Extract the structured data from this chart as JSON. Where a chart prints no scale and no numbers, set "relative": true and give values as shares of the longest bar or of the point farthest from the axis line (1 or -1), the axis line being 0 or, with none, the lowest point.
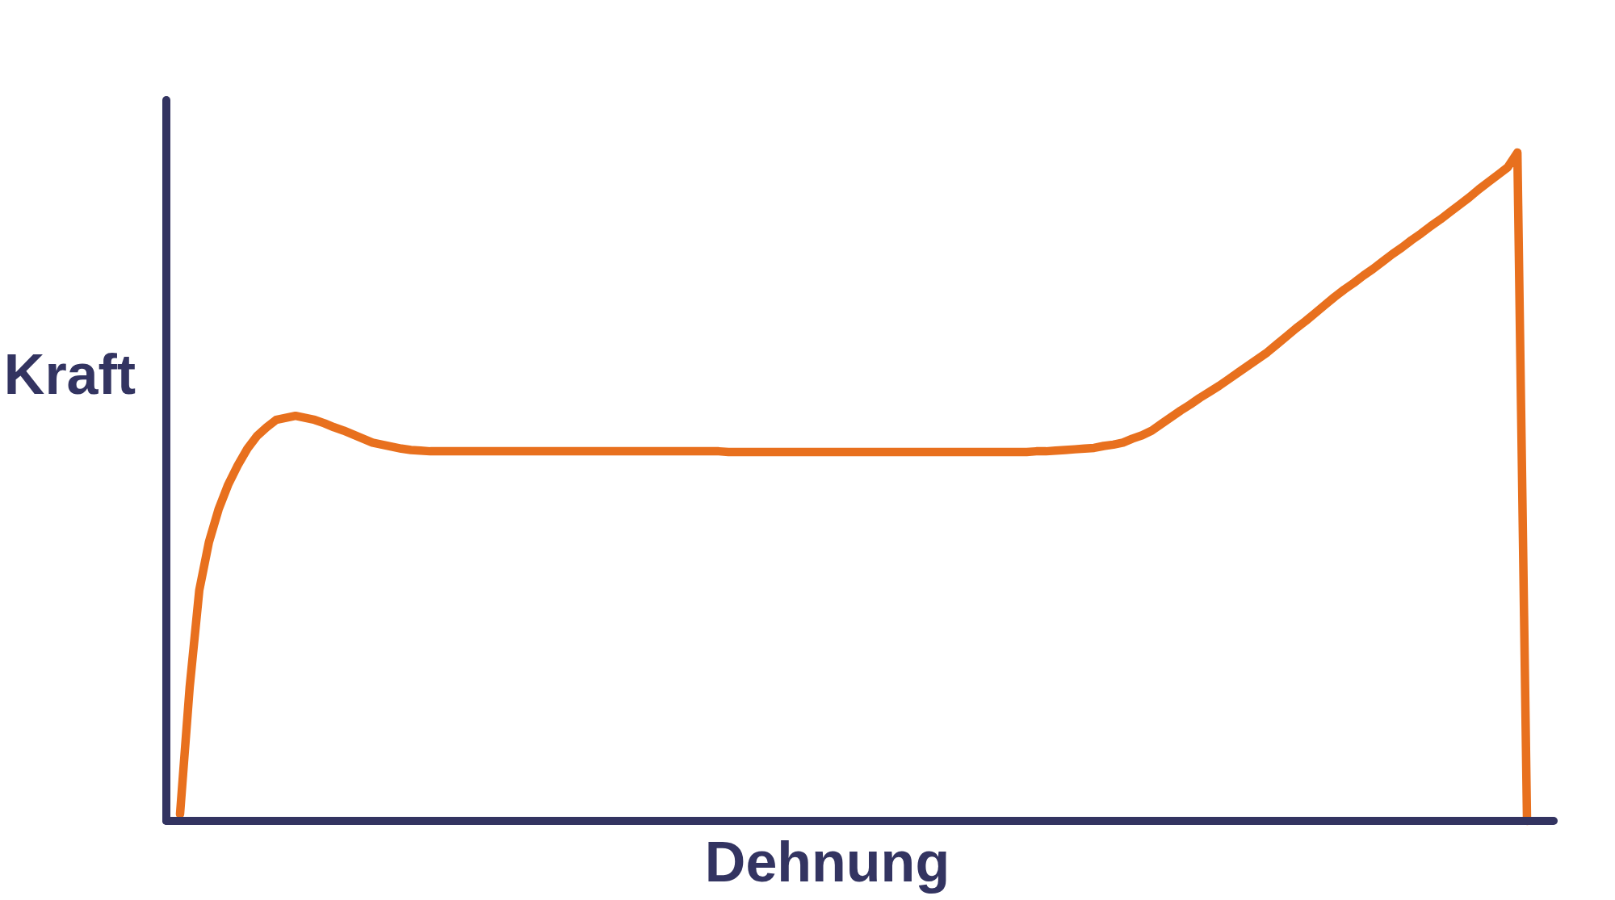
{
  "chart_data": {
    "type": "line",
    "relative": true,
    "xlabel": "Dehnung",
    "ylabel": "Kraft",
    "categories": [
      null,
      null,
      null,
      null,
      null,
      null,
      null,
      null,
      null,
      null,
      null,
      null,
      null,
      null,
      null,
      null,
      null,
      null,
      null,
      null,
      null,
      null,
      null,
      null,
      null,
      null,
      null,
      null,
      null,
      null,
      null,
      null,
      null,
      null,
      null,
      null,
      null,
      null,
      null,
      null,
      null,
      null,
      null,
      null,
      null,
      null,
      null,
      null,
      null,
      null,
      null,
      null,
      null,
      null,
      null,
      null,
      null,
      null,
      null,
      null,
      null,
      null,
      null,
      null,
      null,
      null,
      null,
      null,
      null,
      null,
      null,
      null,
      null,
      null,
      null,
      null,
      null,
      null,
      null,
      null,
      null,
      null,
      null,
      null,
      null,
      null,
      null,
      null,
      null,
      null,
      null,
      null,
      null,
      null,
      null,
      null,
      null,
      null,
      null,
      null,
      null,
      null,
      null,
      null,
      null,
      null,
      null,
      null,
      null,
      null,
      null,
      null,
      null,
      null,
      null,
      null,
      null,
      null,
      null,
      null,
      null,
      null,
      null,
      null,
      null,
      null,
      null,
      null,
      null,
      null,
      null,
      null,
      null,
      null,
      null,
      null,
      null,
      null,
      null,
      null,
      null
    ],
    "series": [
      {
        "color": "#e8701e",
        "values": [
          0.01,
          0.2,
          0.345,
          0.417,
          0.466,
          0.503,
          0.532,
          0.557,
          0.576,
          0.589,
          0.6,
          0.603,
          0.606,
          0.603,
          0.6,
          0.595,
          0.589,
          0.584,
          0.578,
          0.572,
          0.566,
          0.563,
          0.56,
          0.557,
          0.555,
          0.554,
          0.553,
          0.553,
          0.553,
          0.553,
          0.553,
          0.553,
          0.553,
          0.553,
          0.553,
          0.553,
          0.553,
          0.553,
          0.553,
          0.553,
          0.553,
          0.553,
          0.553,
          0.553,
          0.553,
          0.553,
          0.553,
          0.553,
          0.553,
          0.553,
          0.553,
          0.553,
          0.553,
          0.553,
          0.553,
          0.553,
          0.553,
          0.552,
          0.552,
          0.552,
          0.552,
          0.552,
          0.552,
          0.552,
          0.552,
          0.552,
          0.552,
          0.552,
          0.552,
          0.552,
          0.552,
          0.552,
          0.552,
          0.552,
          0.552,
          0.552,
          0.552,
          0.552,
          0.552,
          0.552,
          0.552,
          0.552,
          0.552,
          0.552,
          0.552,
          0.552,
          0.552,
          0.552,
          0.552,
          0.553,
          0.553,
          0.554,
          0.555,
          0.556,
          0.557,
          0.558,
          0.561,
          0.563,
          0.566,
          0.572,
          0.577,
          0.584,
          0.594,
          0.604,
          0.614,
          0.623,
          0.633,
          0.642,
          0.651,
          0.661,
          0.671,
          0.681,
          0.691,
          0.701,
          0.713,
          0.725,
          0.737,
          0.748,
          0.76,
          0.772,
          0.784,
          0.795,
          0.805,
          0.816,
          0.826,
          0.837,
          0.848,
          0.858,
          0.869,
          0.879,
          0.89,
          0.9,
          0.911,
          0.922,
          0.933,
          0.945,
          0.956,
          0.967,
          0.978,
          1,
          0
        ]
      }
    ]
  }
}
